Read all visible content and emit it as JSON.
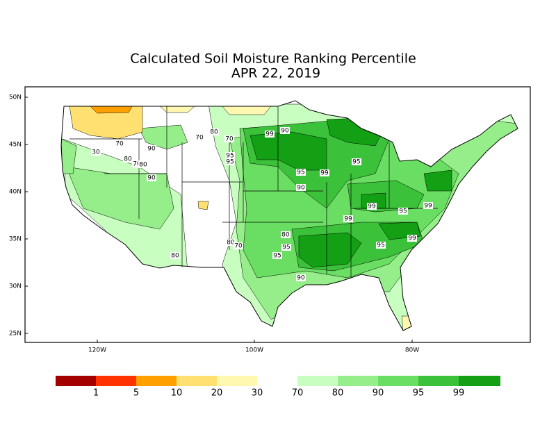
{
  "title": [
    "Calculated Soil Moisture Ranking Percentile",
    "APR 22, 2019"
  ],
  "map": {
    "lat_ticks": [
      "50N",
      "45N",
      "40N",
      "35N",
      "30N",
      "25N"
    ],
    "lon_ticks": [
      "120W",
      "100W",
      "80W"
    ],
    "contour_labels": [
      "90",
      "80",
      "70",
      "70",
      "99",
      "30",
      "70",
      "90",
      "80",
      "70",
      "80",
      "95",
      "95",
      "95",
      "99",
      "95",
      "90",
      "90",
      "99",
      "95",
      "99",
      "99",
      "80",
      "80",
      "70",
      "95",
      "95",
      "95",
      "99",
      "80",
      "90"
    ]
  },
  "legend": {
    "colors": [
      "#a50000",
      "#ff3300",
      "#ffa000",
      "#ffe070",
      "#fff8b0",
      "#c8ffc0",
      "#96ee8a",
      "#6ade62",
      "#3cc23a",
      "#14a014"
    ],
    "labels": [
      "1",
      "5",
      "10",
      "20",
      "30",
      "70",
      "80",
      "90",
      "95",
      "99"
    ]
  }
}
